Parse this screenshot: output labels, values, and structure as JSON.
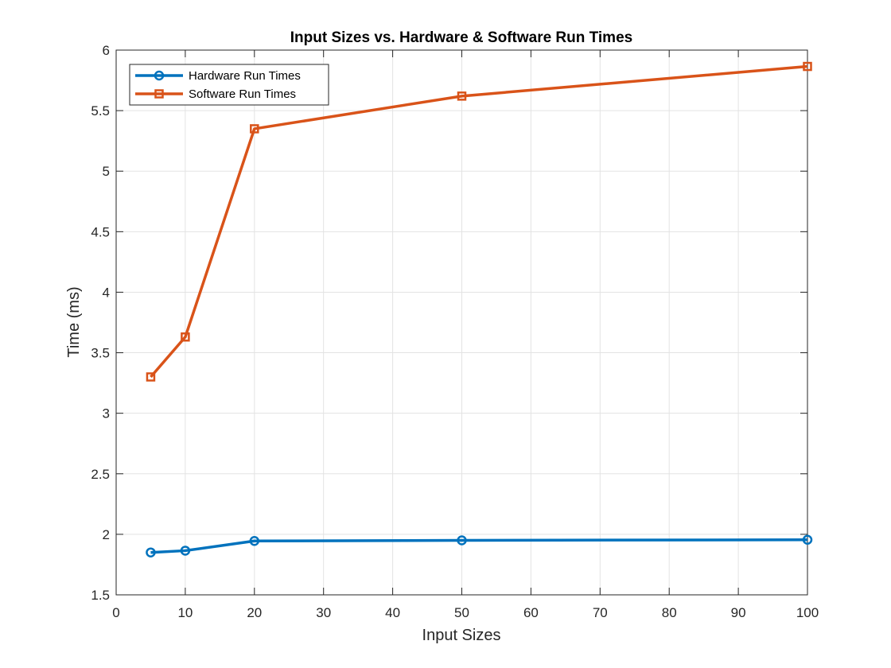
{
  "chart_data": {
    "type": "line",
    "title": "Input Sizes vs. Hardware & Software Run Times",
    "xlabel": "Input Sizes",
    "ylabel": "Time (ms)",
    "xlim": [
      0,
      100
    ],
    "ylim": [
      1.5,
      6
    ],
    "xticks": [
      0,
      10,
      20,
      30,
      40,
      50,
      60,
      70,
      80,
      90,
      100
    ],
    "yticks": [
      1.5,
      2,
      2.5,
      3,
      3.5,
      4,
      4.5,
      5,
      5.5,
      6
    ],
    "xtick_labels": [
      "0",
      "10",
      "20",
      "30",
      "40",
      "50",
      "60",
      "70",
      "80",
      "90",
      "100"
    ],
    "ytick_labels": [
      "1.5",
      "2",
      "2.5",
      "3",
      "3.5",
      "4",
      "4.5",
      "5",
      "5.5",
      "6"
    ],
    "grid": true,
    "legend_position": "top-left",
    "series": [
      {
        "name": "Hardware Run Times",
        "color": "#0072BD",
        "marker": "circle",
        "x": [
          5,
          10,
          20,
          50,
          100
        ],
        "y": [
          1.85,
          1.865,
          1.945,
          1.95,
          1.955
        ]
      },
      {
        "name": "Software Run Times",
        "color": "#D95319",
        "marker": "square",
        "x": [
          5,
          10,
          20,
          50,
          100
        ],
        "y": [
          3.3,
          3.63,
          5.35,
          5.62,
          5.865
        ]
      }
    ]
  }
}
